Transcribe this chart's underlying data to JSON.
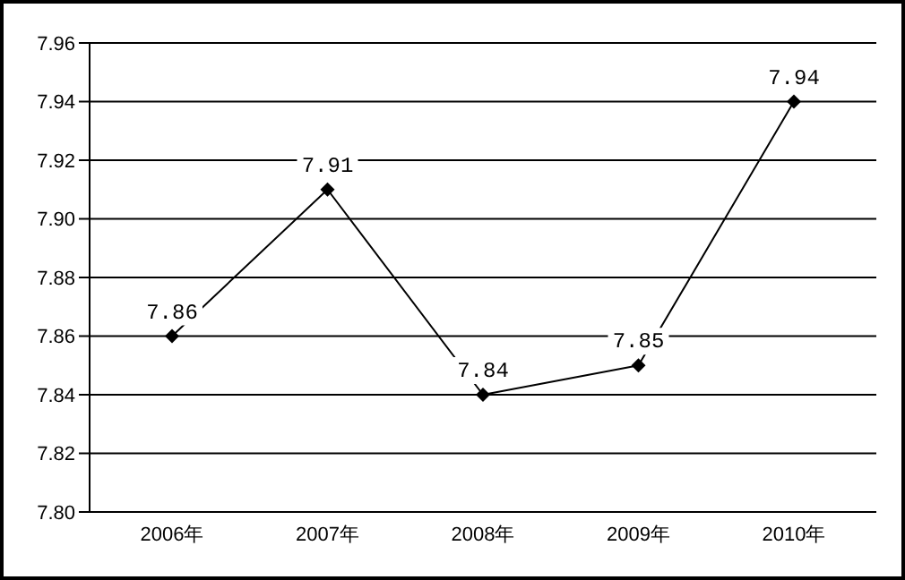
{
  "chart_data": {
    "type": "line",
    "categories": [
      "2006年",
      "2007年",
      "2008年",
      "2009年",
      "2010年"
    ],
    "series": [
      {
        "color": "#000000",
        "values": [
          7.86,
          7.91,
          7.84,
          7.85,
          7.94
        ]
      }
    ],
    "ylim": [
      7.8,
      7.96
    ],
    "yticks": [
      {
        "value": 7.8,
        "label": "7.80"
      },
      {
        "value": 7.82,
        "label": "7.82"
      },
      {
        "value": 7.84,
        "label": "7.84"
      },
      {
        "value": 7.86,
        "label": "7.86"
      },
      {
        "value": 7.88,
        "label": "7.88"
      },
      {
        "value": 7.9,
        "label": "7.90"
      },
      {
        "value": 7.92,
        "label": "7.92"
      },
      {
        "value": 7.94,
        "label": "7.94"
      },
      {
        "value": 7.96,
        "label": "7.96"
      }
    ],
    "grid": "y",
    "marker": "diamond",
    "line_style": "solid",
    "data_labels": true,
    "legend": false
  }
}
